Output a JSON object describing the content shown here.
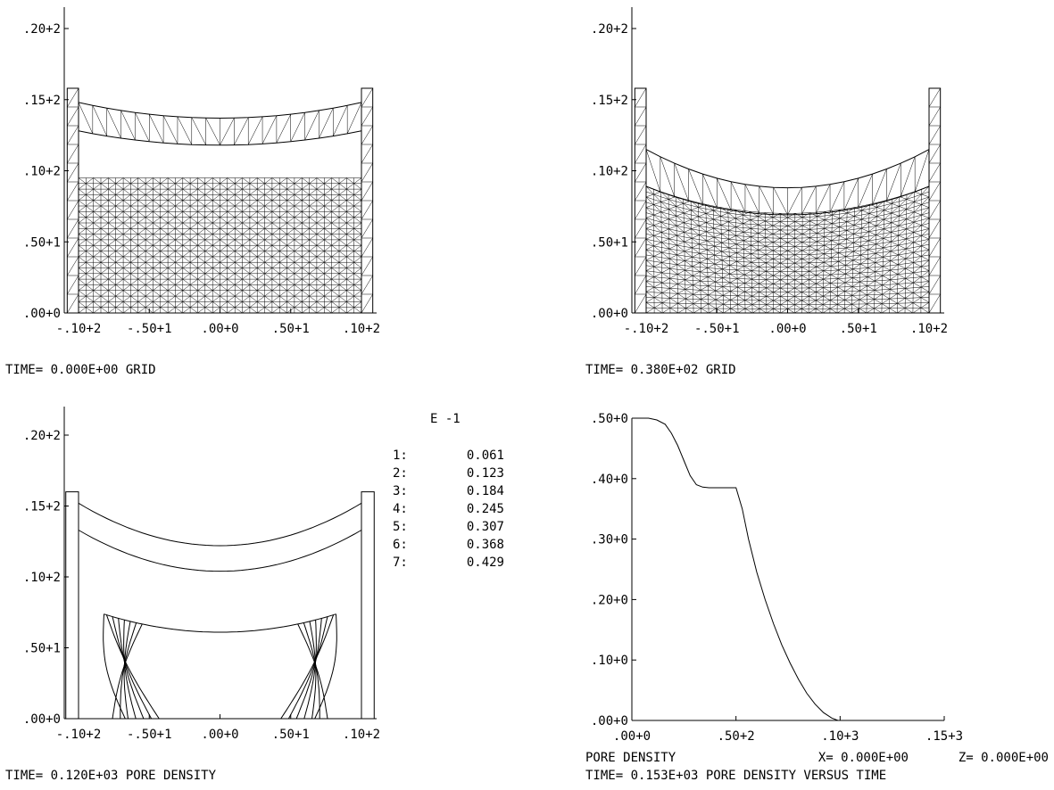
{
  "chart_data": [
    {
      "type": "mesh",
      "x_ticks": [
        "-.10+2",
        "-.50+1",
        ".00+0",
        ".50+1",
        ".10+2"
      ],
      "y_ticks": [
        ".00+0",
        ".50+1",
        ".10+2",
        ".15+2",
        ".20+2"
      ],
      "xlim": [
        -11,
        11.5
      ],
      "ylim": [
        0,
        22
      ],
      "caption": "TIME= 0.000E+00  GRID",
      "walls": {
        "x_inner": 10,
        "width": 0.8,
        "height": 15.8
      },
      "body_top": 9.5,
      "membrane_lower": {
        "edge": 12.8,
        "center": 11.8
      },
      "membrane_upper": {
        "edge": 14.8,
        "center": 13.7
      },
      "mesh_columns": 38,
      "mesh_rows": 24
    },
    {
      "type": "mesh",
      "x_ticks": [
        "-.10+2",
        "-.50+1",
        ".00+0",
        ".50+1",
        ".10+2"
      ],
      "y_ticks": [
        ".00+0",
        ".50+1",
        ".10+2",
        ".15+2",
        ".20+2"
      ],
      "xlim": [
        -11,
        11.5
      ],
      "ylim": [
        0,
        22
      ],
      "caption": "TIME= 0.380E+02  GRID",
      "walls": {
        "x_inner": 10,
        "width": 0.8,
        "height": 15.8
      },
      "body_top": {
        "edge": 8.9,
        "center": 7.0
      },
      "membrane_lower": {
        "edge": 8.9,
        "center": 6.9
      },
      "membrane_upper": {
        "edge": 11.5,
        "center": 8.8
      },
      "mesh_columns": 38,
      "mesh_rows": 24
    },
    {
      "type": "contour",
      "x_ticks": [
        "-.10+2",
        "-.50+1",
        ".00+0",
        ".50+1",
        ".10+2"
      ],
      "y_ticks": [
        ".00+0",
        ".50+1",
        ".10+2",
        ".15+2",
        ".20+2"
      ],
      "xlim": [
        -11,
        11.5
      ],
      "ylim": [
        0,
        22
      ],
      "caption": "TIME= 0.120E+03  PORE DENSITY",
      "scale_label": "E -1",
      "levels": [
        {
          "key": "1:",
          "value": "0.061"
        },
        {
          "key": "2:",
          "value": "0.123"
        },
        {
          "key": "3:",
          "value": "0.184"
        },
        {
          "key": "4:",
          "value": "0.245"
        },
        {
          "key": "5:",
          "value": "0.307"
        },
        {
          "key": "6:",
          "value": "0.368"
        },
        {
          "key": "7:",
          "value": "0.429"
        }
      ],
      "membrane_lower": {
        "edge": 13.3,
        "center": 10.4
      },
      "membrane_upper": {
        "edge": 15.2,
        "center": 12.2
      },
      "interface": {
        "x_extent": 8.2,
        "edge": 7.6,
        "center": 6.1
      }
    },
    {
      "type": "line",
      "x_ticks": [
        ".00+0",
        ".50+2",
        ".10+3",
        ".15+3"
      ],
      "y_ticks": [
        ".00+0",
        ".10+0",
        ".20+0",
        ".30+0",
        ".40+0",
        ".50+0"
      ],
      "xlim": [
        0,
        150
      ],
      "ylim": [
        0,
        0.5
      ],
      "x": [
        0,
        8,
        12,
        16,
        19,
        22,
        25,
        28,
        31,
        34,
        37,
        40,
        45,
        50,
        53,
        56,
        60,
        64,
        68,
        72,
        76,
        80,
        84,
        88,
        92,
        96,
        99
      ],
      "y": [
        0.5,
        0.5,
        0.497,
        0.49,
        0.475,
        0.455,
        0.43,
        0.405,
        0.39,
        0.386,
        0.385,
        0.385,
        0.385,
        0.385,
        0.35,
        0.3,
        0.245,
        0.2,
        0.16,
        0.125,
        0.095,
        0.068,
        0.045,
        0.027,
        0.013,
        0.004,
        0.0
      ],
      "xlabel": "PORE DENSITY",
      "coord_x": "X= 0.000E+00",
      "coord_z": "Z= 0.000E+00",
      "caption": "TIME= 0.153E+03  PORE DENSITY VERSUS TIME"
    }
  ]
}
